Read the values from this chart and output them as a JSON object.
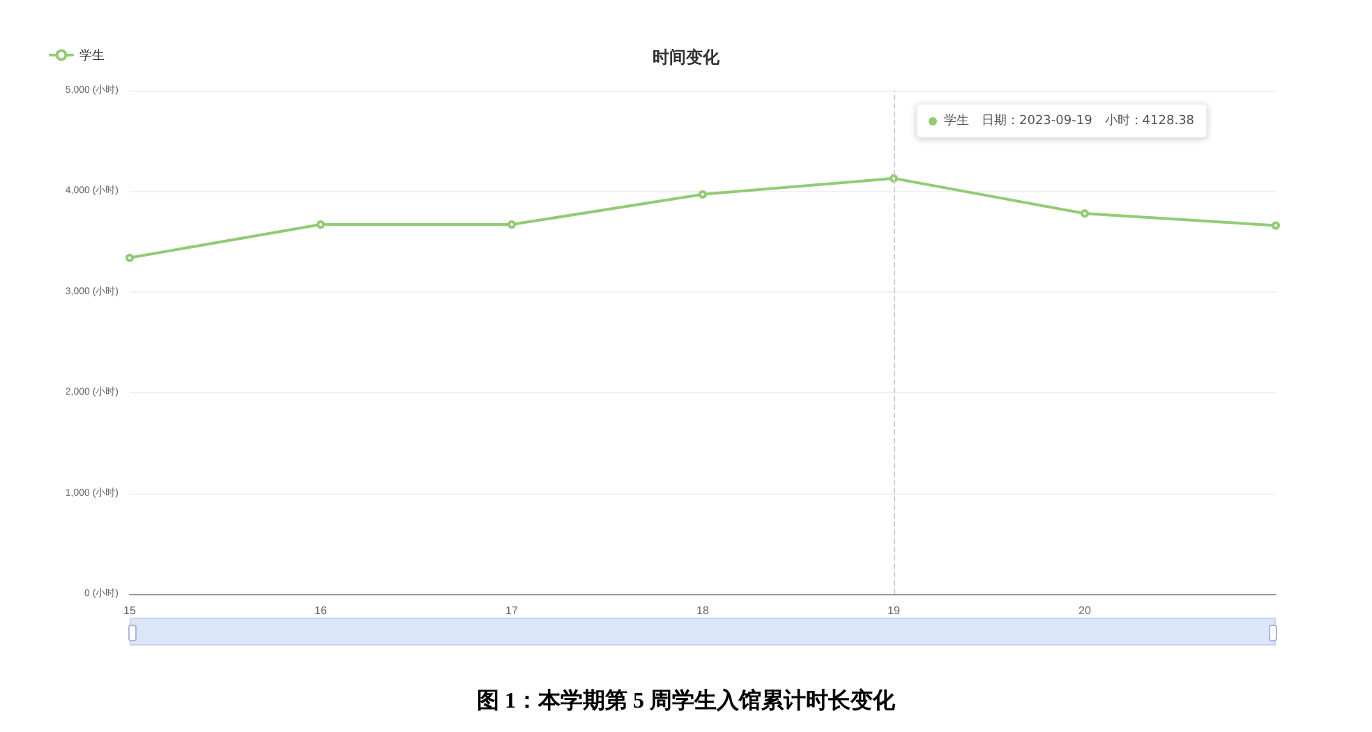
{
  "chart_data": {
    "type": "line",
    "title": "时间变化",
    "categories": [
      "15",
      "16",
      "17",
      "18",
      "19",
      "20",
      null
    ],
    "series": [
      {
        "name": "学生",
        "color": "#91cc75",
        "values": [
          3340,
          3670,
          3670,
          3970,
          4128.38,
          3780,
          3660
        ]
      }
    ],
    "ylim": [
      0,
      5000
    ],
    "yticks": [
      {
        "value": 0,
        "label": "0 (小时)"
      },
      {
        "value": 1000,
        "label": "1,000 (小时)"
      },
      {
        "value": 2000,
        "label": "2,000 (小时)"
      },
      {
        "value": 3000,
        "label": "3,000 (小时)"
      },
      {
        "value": 4000,
        "label": "4,000 (小时)"
      },
      {
        "value": 5000,
        "label": "5,000 (小时)"
      }
    ],
    "grid": "y",
    "legend": "top left",
    "marker": "circle",
    "line_style": "solid",
    "ref_lines": [
      {
        "axis": "x",
        "value": "19",
        "color": "#cccccc",
        "line_style": "dashed"
      }
    ],
    "annotations": [
      "图 1：本学期第 5 周学生入馆累计时长变化",
      "学生　日期：2023-09-19　小时：4128.38"
    ]
  }
}
